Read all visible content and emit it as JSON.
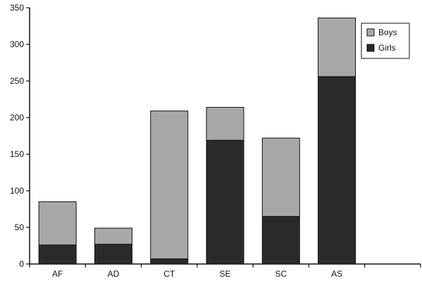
{
  "chart_data": {
    "type": "bar",
    "stacked": true,
    "categories": [
      "AF",
      "AD",
      "CT",
      "SE",
      "SC",
      "AS"
    ],
    "series": [
      {
        "name": "Girls",
        "values": [
          26,
          27,
          7,
          169,
          65,
          256
        ],
        "color": "#2a2a2a"
      },
      {
        "name": "Boys",
        "values": [
          59,
          22,
          202,
          45,
          107,
          80
        ],
        "color": "#a8a8a8"
      }
    ],
    "title": "",
    "xlabel": "",
    "ylabel": "",
    "ylim": [
      0,
      350
    ],
    "yticks": [
      0,
      50,
      100,
      150,
      200,
      250,
      300,
      350
    ],
    "grid": false,
    "legend": {
      "placement": "top-right",
      "order": [
        "Boys",
        "Girls"
      ]
    }
  }
}
